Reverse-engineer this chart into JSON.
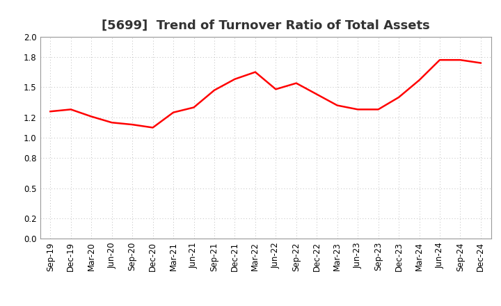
{
  "title": "[5699]  Trend of Turnover Ratio of Total Assets",
  "x_labels": [
    "Sep-19",
    "Dec-19",
    "Mar-20",
    "Jun-20",
    "Sep-20",
    "Dec-20",
    "Mar-21",
    "Jun-21",
    "Sep-21",
    "Dec-21",
    "Mar-22",
    "Jun-22",
    "Sep-22",
    "Dec-22",
    "Mar-23",
    "Jun-23",
    "Sep-23",
    "Dec-23",
    "Mar-24",
    "Jun-24",
    "Sep-24",
    "Dec-24"
  ],
  "values": [
    1.26,
    1.28,
    1.21,
    1.15,
    1.13,
    1.1,
    1.25,
    1.3,
    1.47,
    1.58,
    1.65,
    1.48,
    1.54,
    1.43,
    1.32,
    1.28,
    1.28,
    1.4,
    1.57,
    1.77,
    1.77,
    1.74
  ],
  "line_color": "#ff0000",
  "line_width": 1.8,
  "ylim": [
    0.0,
    2.0
  ],
  "yticks": [
    0.0,
    0.2,
    0.5,
    0.8,
    1.0,
    1.2,
    1.5,
    1.8,
    2.0
  ],
  "bg_color": "#ffffff",
  "grid_color": "#bbbbbb",
  "title_fontsize": 13,
  "tick_fontsize": 8.5
}
